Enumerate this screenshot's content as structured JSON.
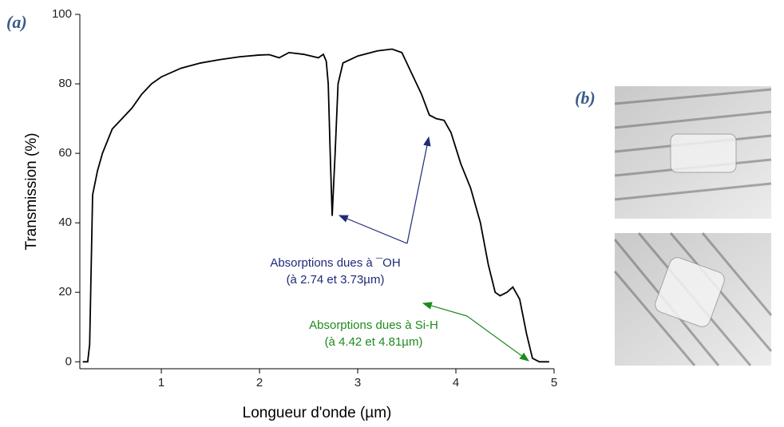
{
  "chart_data": {
    "type": "line",
    "xlabel": "Longueur d'onde (µm)",
    "ylabel": "Transmission (%)",
    "x": [
      0.2,
      0.25,
      0.27,
      0.3,
      0.35,
      0.4,
      0.5,
      0.6,
      0.7,
      0.8,
      0.9,
      1.0,
      1.2,
      1.4,
      1.6,
      1.8,
      2.0,
      2.1,
      2.2,
      2.3,
      2.45,
      2.6,
      2.65,
      2.68,
      2.7,
      2.72,
      2.74,
      2.77,
      2.8,
      2.85,
      3.0,
      3.2,
      3.35,
      3.45,
      3.55,
      3.65,
      3.73,
      3.8,
      3.88,
      3.95,
      4.05,
      4.15,
      4.25,
      4.33,
      4.4,
      4.45,
      4.52,
      4.58,
      4.65,
      4.72,
      4.78,
      4.85,
      4.95
    ],
    "values": [
      0,
      0,
      5,
      48,
      55,
      60,
      67,
      70,
      73,
      77,
      80,
      82,
      84.5,
      86,
      87,
      87.8,
      88.3,
      88.4,
      87.5,
      89,
      88.5,
      87.5,
      88.5,
      86.5,
      80,
      60,
      42,
      60,
      80,
      86,
      88,
      89.5,
      90,
      89,
      83,
      77,
      71,
      70,
      69.5,
      66,
      57,
      50,
      40,
      28,
      20,
      19,
      20,
      21.5,
      18,
      8,
      1,
      0,
      0
    ],
    "color": "#000000",
    "xlim": [
      0.17,
      5
    ],
    "xticks": [
      1,
      2,
      3,
      4,
      5
    ],
    "ylim": [
      -2,
      100
    ],
    "yticks": [
      0,
      20,
      40,
      60,
      80,
      100
    ],
    "annotations": [
      {
        "lines": [
          "Absorptions dues à ¯OH",
          "(à 2.74 et 3.73µm)"
        ],
        "color": "#1f2a7a"
      },
      {
        "lines": [
          "Absorptions dues à Si-H",
          "(à 4.42 et 4.81µm)"
        ],
        "color": "#1f8a1f"
      }
    ],
    "panel_labels": [
      "(a)",
      "(b)"
    ]
  }
}
